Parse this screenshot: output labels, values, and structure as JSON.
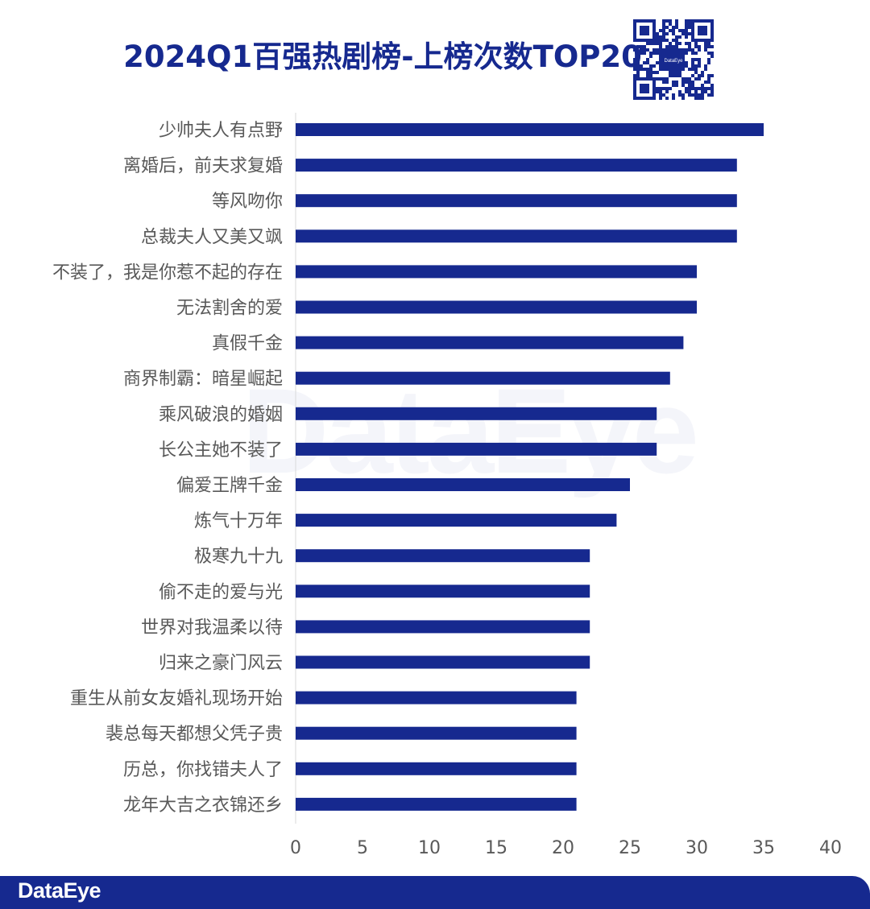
{
  "title": "2024Q1百强热剧榜-上榜次数TOP20",
  "brand": "DataEye",
  "watermark": "DataEye",
  "qr_code": {
    "center_label": "DataEye"
  },
  "colors": {
    "bar": "#16298f",
    "title": "#16298f",
    "footer": "#16298f",
    "axis_text": "#595959"
  },
  "chart_data": {
    "type": "bar",
    "orientation": "horizontal",
    "title": "2024Q1百强热剧榜-上榜次数TOP20",
    "categories": [
      "少帅夫人有点野",
      "离婚后，前夫求复婚",
      "等风吻你",
      "总裁夫人又美又飒",
      "不装了，我是你惹不起的存在",
      "无法割舍的爱",
      "真假千金",
      "商界制霸：暗星崛起",
      "乘风破浪的婚姻",
      "长公主她不装了",
      "偏爱王牌千金",
      "炼气十万年",
      "极寒九十九",
      "偷不走的爱与光",
      "世界对我温柔以待",
      "归来之豪门风云",
      "重生从前女友婚礼现场开始",
      "裴总每天都想父凭子贵",
      "历总，你找错夫人了",
      "龙年大吉之衣锦还乡"
    ],
    "values": [
      35,
      33,
      33,
      33,
      30,
      30,
      29,
      28,
      27,
      27,
      25,
      24,
      22,
      22,
      22,
      22,
      21,
      21,
      21,
      21
    ],
    "xlim": [
      0,
      40
    ],
    "xticks": [
      "0",
      "5",
      "10",
      "15",
      "20",
      "25",
      "30",
      "35",
      "40"
    ],
    "xlabel": "",
    "ylabel": "",
    "grid": false,
    "legend": "none"
  }
}
